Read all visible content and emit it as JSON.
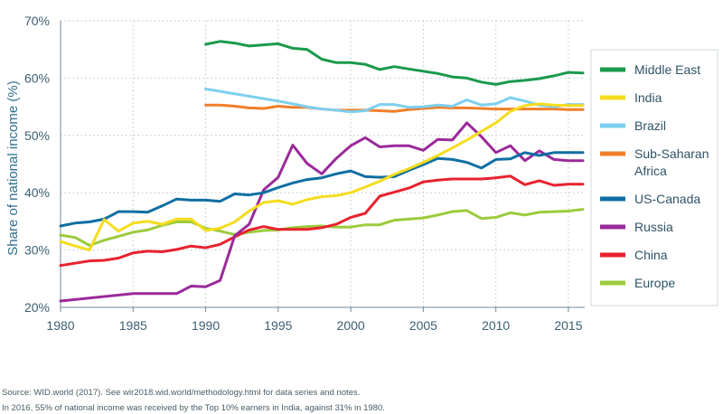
{
  "chart_data": {
    "type": "line",
    "ylabel": "Share of national income (%)",
    "xlabel": "",
    "xlim": [
      1980,
      2016
    ],
    "ylim": [
      20,
      70
    ],
    "x_ticks": [
      1980,
      1985,
      1990,
      1995,
      2000,
      2005,
      2010,
      2015
    ],
    "y_ticks": [
      "20%",
      "30%",
      "40%",
      "50%",
      "60%",
      "70%"
    ],
    "grid": "dotted",
    "legend_position": "right",
    "series": [
      {
        "name": "Middle East",
        "color": "#1a9a4b",
        "x": [
          1990,
          1991,
          1992,
          1993,
          1994,
          1995,
          1996,
          1997,
          1998,
          1999,
          2000,
          2001,
          2002,
          2003,
          2004,
          2005,
          2006,
          2007,
          2008,
          2009,
          2010,
          2011,
          2012,
          2013,
          2014,
          2015,
          2016
        ],
        "values": [
          65.9,
          66.4,
          66.1,
          65.6,
          65.8,
          66.0,
          65.2,
          65.0,
          63.3,
          62.7,
          62.7,
          62.4,
          61.5,
          62.0,
          61.6,
          61.2,
          60.8,
          60.2,
          60.0,
          59.3,
          58.9,
          59.4,
          59.6,
          59.9,
          60.4,
          61.0,
          60.9
        ]
      },
      {
        "name": "India",
        "color": "#f5dc1e",
        "x": [
          1980,
          1981,
          1982,
          1983,
          1984,
          1985,
          1986,
          1987,
          1988,
          1989,
          1990,
          1991,
          1992,
          1993,
          1994,
          1995,
          1996,
          1997,
          1998,
          1999,
          2000,
          2001,
          2002,
          2003,
          2004,
          2005,
          2006,
          2007,
          2008,
          2009,
          2010,
          2011,
          2012,
          2013,
          2014,
          2015,
          2016
        ],
        "values": [
          31.5,
          30.7,
          30.0,
          35.3,
          33.3,
          34.7,
          35.0,
          34.5,
          35.4,
          35.4,
          33.4,
          33.8,
          34.9,
          36.8,
          38.3,
          38.6,
          38.0,
          38.8,
          39.3,
          39.5,
          40.0,
          41.0,
          42.0,
          43.2,
          44.2,
          45.3,
          46.5,
          47.8,
          49.2,
          50.7,
          52.2,
          54.2,
          55.2,
          55.5,
          55.3,
          55.2,
          55.2
        ]
      },
      {
        "name": "Brazil",
        "color": "#7ecfef",
        "x": [
          1990,
          1995,
          1996,
          1997,
          1998,
          1999,
          2000,
          2001,
          2002,
          2003,
          2004,
          2005,
          2006,
          2007,
          2008,
          2009,
          2010,
          2011,
          2012,
          2013,
          2014,
          2015,
          2016
        ],
        "values": [
          58.1,
          56.0,
          55.5,
          55.0,
          54.6,
          54.4,
          54.1,
          54.3,
          55.4,
          55.4,
          54.9,
          55.0,
          55.3,
          55.1,
          56.2,
          55.3,
          55.5,
          56.6,
          56.0,
          55.3,
          55.0,
          55.4,
          55.4
        ]
      },
      {
        "name": "Sub-Saharan Africa",
        "color": "#f07f2a",
        "x": [
          1990,
          1991,
          1992,
          1993,
          1994,
          1995,
          1996,
          1997,
          1998,
          1999,
          2000,
          2001,
          2002,
          2003,
          2004,
          2005,
          2006,
          2007,
          2008,
          2009,
          2010,
          2011,
          2012,
          2013,
          2014,
          2015,
          2016
        ],
        "values": [
          55.3,
          55.3,
          55.1,
          54.8,
          54.7,
          55.1,
          54.9,
          54.9,
          54.6,
          54.4,
          54.4,
          54.4,
          54.3,
          54.2,
          54.5,
          54.7,
          54.9,
          54.8,
          54.8,
          54.7,
          54.6,
          54.6,
          54.6,
          54.6,
          54.6,
          54.5,
          54.5
        ]
      },
      {
        "name": "US-Canada",
        "color": "#0f6ea3",
        "x": [
          1980,
          1981,
          1982,
          1983,
          1984,
          1985,
          1986,
          1987,
          1988,
          1989,
          1990,
          1991,
          1992,
          1993,
          1994,
          1995,
          1996,
          1997,
          1998,
          1999,
          2000,
          2001,
          2002,
          2003,
          2004,
          2005,
          2006,
          2007,
          2008,
          2009,
          2010,
          2011,
          2012,
          2013,
          2014,
          2015,
          2016
        ],
        "values": [
          34.2,
          34.7,
          34.9,
          35.4,
          36.7,
          36.7,
          36.6,
          37.7,
          38.9,
          38.7,
          38.7,
          38.5,
          39.8,
          39.6,
          40.0,
          40.9,
          41.7,
          42.3,
          42.6,
          43.3,
          43.8,
          42.8,
          42.7,
          42.8,
          43.9,
          44.9,
          46.0,
          45.8,
          45.3,
          44.3,
          45.8,
          45.9,
          47.0,
          46.5,
          47.0,
          47.0,
          47.0
        ]
      },
      {
        "name": "Russia",
        "color": "#9b2a9a",
        "x": [
          1980,
          1985,
          1986,
          1987,
          1988,
          1989,
          1990,
          1991,
          1992,
          1993,
          1994,
          1995,
          1996,
          1997,
          1998,
          1999,
          2000,
          2001,
          2002,
          2003,
          2004,
          2005,
          2006,
          2007,
          2008,
          2009,
          2010,
          2011,
          2012,
          2013,
          2014,
          2015,
          2016
        ],
        "values": [
          21.1,
          22.4,
          22.4,
          22.4,
          22.4,
          23.7,
          23.6,
          24.7,
          32.5,
          34.5,
          40.5,
          42.7,
          48.3,
          45.1,
          43.3,
          46.0,
          48.2,
          49.6,
          48.0,
          48.2,
          48.2,
          47.4,
          49.3,
          49.2,
          52.2,
          49.8,
          47.0,
          48.2,
          45.6,
          47.3,
          45.8,
          45.6,
          45.6
        ]
      },
      {
        "name": "China",
        "color": "#e8222e",
        "x": [
          1980,
          1981,
          1982,
          1983,
          1984,
          1985,
          1986,
          1987,
          1988,
          1989,
          1990,
          1991,
          1992,
          1993,
          1994,
          1995,
          1996,
          1997,
          1998,
          1999,
          2000,
          2001,
          2002,
          2003,
          2004,
          2005,
          2006,
          2007,
          2008,
          2009,
          2010,
          2011,
          2012,
          2013,
          2014,
          2015,
          2016
        ],
        "values": [
          27.3,
          27.7,
          28.1,
          28.2,
          28.6,
          29.5,
          29.8,
          29.7,
          30.1,
          30.7,
          30.4,
          31.0,
          32.3,
          33.5,
          34.1,
          33.6,
          33.6,
          33.6,
          33.9,
          34.5,
          35.7,
          36.4,
          39.4,
          40.1,
          40.8,
          41.9,
          42.2,
          42.4,
          42.4,
          42.4,
          42.6,
          42.9,
          41.4,
          42.1,
          41.3,
          41.5,
          41.5
        ]
      },
      {
        "name": "Europe",
        "color": "#9bcb3c",
        "x": [
          1980,
          1981,
          1982,
          1983,
          1984,
          1985,
          1986,
          1987,
          1988,
          1989,
          1990,
          1991,
          1992,
          1993,
          1994,
          1995,
          1996,
          1997,
          1998,
          1999,
          2000,
          2001,
          2002,
          2003,
          2004,
          2005,
          2006,
          2007,
          2008,
          2009,
          2010,
          2011,
          2012,
          2013,
          2014,
          2015,
          2016
        ],
        "values": [
          32.6,
          32.2,
          30.8,
          31.7,
          32.4,
          33.1,
          33.5,
          34.3,
          34.9,
          34.9,
          33.8,
          33.3,
          32.7,
          33.1,
          33.4,
          33.5,
          33.9,
          34.1,
          34.2,
          34.0,
          34.0,
          34.4,
          34.4,
          35.2,
          35.4,
          35.6,
          36.1,
          36.7,
          36.9,
          35.5,
          35.7,
          36.5,
          36.1,
          36.6,
          36.7,
          36.8,
          37.1
        ]
      }
    ]
  },
  "footer": {
    "source": "Source: WID.world (2017). See wir2018.wid.world/methodology.html for data series and notes.",
    "note": "In 2016, 55% of national income was received by the Top 10% earners in India, against 31% in 1980."
  }
}
